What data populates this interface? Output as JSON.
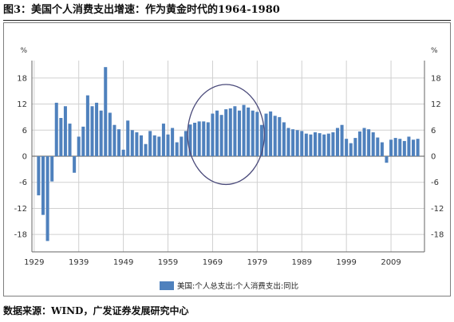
{
  "header": {
    "title": "图3：美国个人消费支出增速：作为黄金时代的1964-1980"
  },
  "source": {
    "text": "数据来源：WIND，广发证券发展研究中心"
  },
  "chart_data": {
    "type": "bar",
    "title": "",
    "xlabel": "",
    "ylabel": "",
    "y_unit_left": "%",
    "y_unit_right": "%",
    "ylim": [
      -22,
      22
    ],
    "yticks": [
      18,
      12,
      6,
      0,
      -6,
      -12,
      -18
    ],
    "xlim": [
      1928.5,
      2016.5
    ],
    "xticks": [
      1929,
      1939,
      1949,
      1959,
      1969,
      1979,
      1989,
      1999,
      2009
    ],
    "grid": true,
    "legend_position": "bottom-center",
    "colors": {
      "bar": "#4f81bd",
      "highlight_circle": "#4a4a7a"
    },
    "highlight": {
      "from_year": 1964,
      "to_year": 1980
    },
    "series": [
      {
        "name": "美国:个人总支出:个人消费支出:同比",
        "x": [
          1930,
          1931,
          1932,
          1933,
          1934,
          1935,
          1936,
          1937,
          1938,
          1939,
          1940,
          1941,
          1942,
          1943,
          1944,
          1945,
          1946,
          1947,
          1948,
          1949,
          1950,
          1951,
          1952,
          1953,
          1954,
          1955,
          1956,
          1957,
          1958,
          1959,
          1960,
          1961,
          1962,
          1963,
          1964,
          1965,
          1966,
          1967,
          1968,
          1969,
          1970,
          1971,
          1972,
          1973,
          1974,
          1975,
          1976,
          1977,
          1978,
          1979,
          1980,
          1981,
          1982,
          1983,
          1984,
          1985,
          1986,
          1987,
          1988,
          1989,
          1990,
          1991,
          1992,
          1993,
          1994,
          1995,
          1996,
          1997,
          1998,
          1999,
          2000,
          2001,
          2002,
          2003,
          2004,
          2005,
          2006,
          2007,
          2008,
          2009,
          2010,
          2011,
          2012,
          2013,
          2014,
          2015
        ],
        "values": [
          -9.0,
          -13.5,
          -19.5,
          -5.8,
          12.3,
          8.8,
          11.5,
          7.5,
          -3.8,
          4.5,
          6.8,
          14.0,
          11.5,
          12.3,
          10.5,
          20.5,
          10.0,
          7.2,
          6.2,
          1.5,
          8.2,
          6.0,
          5.5,
          4.8,
          2.8,
          5.8,
          4.8,
          4.5,
          7.5,
          5.0,
          6.5,
          3.2,
          4.5,
          5.8,
          7.3,
          7.7,
          8.0,
          8.0,
          7.8,
          9.8,
          10.5,
          9.5,
          10.8,
          11.0,
          11.5,
          10.5,
          11.8,
          11.2,
          10.5,
          10.2,
          7.2,
          9.8,
          10.3,
          9.3,
          9.0,
          7.8,
          6.5,
          6.2,
          6.0,
          5.8,
          5.2,
          5.0,
          5.5,
          5.3,
          5.0,
          5.2,
          5.5,
          6.5,
          7.2,
          4.0,
          3.0,
          4.2,
          5.7,
          6.5,
          6.2,
          5.5,
          4.3,
          3.2,
          -1.5,
          3.8,
          4.2,
          4.0,
          3.5,
          4.5,
          3.8,
          4.0
        ]
      }
    ]
  }
}
